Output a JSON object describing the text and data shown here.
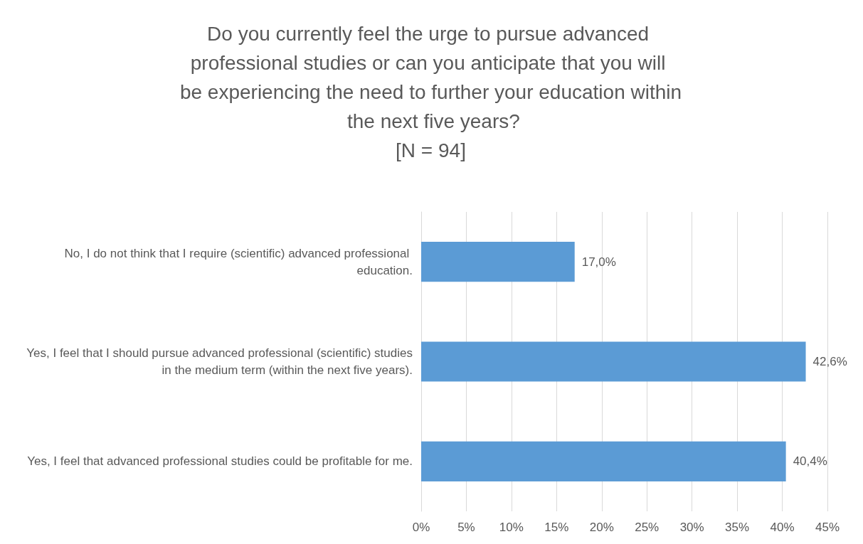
{
  "chart_data": {
    "type": "bar",
    "orientation": "horizontal",
    "title": "Do you currently feel the urge to pursue advanced professional studies or can you anticipate that you will be experiencing the need to further your education within the next five years?",
    "subtitle": "[N = 94]",
    "categories": [
      "No, I do not think that I require (scientific) advanced professional education.",
      "Yes, I feel that I should pursue advanced professional (scientific) studies in the medium term (within the next five years).",
      "Yes, I feel that advanced professional studies could be profitable for me."
    ],
    "values": [
      17.0,
      42.6,
      40.4
    ],
    "value_labels": [
      "17,0%",
      "42,6%",
      "40,4%"
    ],
    "color": "#5b9bd5",
    "xlim": [
      0,
      45
    ],
    "xticks": [
      {
        "value": 0,
        "label": "0%"
      },
      {
        "value": 5,
        "label": "5%"
      },
      {
        "value": 10,
        "label": "10%"
      },
      {
        "value": 15,
        "label": "15%"
      },
      {
        "value": 20,
        "label": "20%"
      },
      {
        "value": 25,
        "label": "25%"
      },
      {
        "value": 30,
        "label": "30%"
      },
      {
        "value": 35,
        "label": "35%"
      },
      {
        "value": 40,
        "label": "40%"
      },
      {
        "value": 45,
        "label": "45%"
      }
    ],
    "grid": "x"
  }
}
